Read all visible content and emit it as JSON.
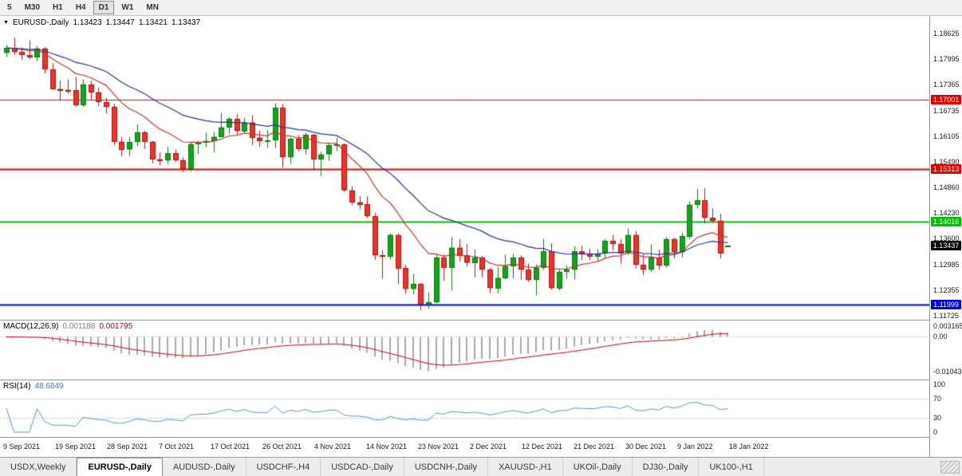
{
  "toolbar": {
    "timeframes": [
      {
        "label": "5",
        "active": false
      },
      {
        "label": "M30",
        "active": false
      },
      {
        "label": "H1",
        "active": false
      },
      {
        "label": "H4",
        "active": false
      },
      {
        "label": "D1",
        "active": true
      },
      {
        "label": "W1",
        "active": false
      },
      {
        "label": "MN",
        "active": false
      }
    ]
  },
  "chart": {
    "title": {
      "symbol": "EURUSD-,Daily",
      "open": "1.13423",
      "high": "1.13447",
      "low": "1.13421",
      "close": "1.13437"
    }
  },
  "chart_data": {
    "type": "candlestick",
    "symbol": "EURUSD-",
    "timeframe": "Daily",
    "y_axis": {
      "min": 1.11725,
      "max": 1.18625,
      "ticks": [
        "1.18625",
        "1.17995",
        "1.17365",
        "1.16735",
        "1.16105",
        "1.15490",
        "1.14860",
        "1.14230",
        "1.13600",
        "1.12985",
        "1.12355",
        "1.11725"
      ]
    },
    "x_axis": {
      "labels": [
        "9 Sep 2021",
        "19 Sep 2021",
        "28 Sep 2021",
        "7 Oct 2021",
        "17 Oct 2021",
        "26 Oct 2021",
        "4 Nov 2021",
        "14 Nov 2021",
        "23 Nov 2021",
        "2 Dec 2021",
        "12 Dec 2021",
        "21 Dec 2021",
        "30 Dec 2021",
        "9 Jan 2022",
        "18 Jan 2022"
      ]
    },
    "hlines": [
      {
        "price": 1.17001,
        "label": "1.17001",
        "color": "#e80000",
        "width": 1
      },
      {
        "price": 1.15313,
        "label": "1.15313",
        "color": "#e80000",
        "width": 2
      },
      {
        "price": 1.14016,
        "label": "1.14016",
        "color": "#00c000",
        "width": 2
      },
      {
        "price": 1.11999,
        "label": "1.11999",
        "color": "#0000e8",
        "width": 2
      }
    ],
    "current_price": {
      "value": 1.13437,
      "label": "1.13437",
      "bg": "#000000"
    },
    "moving_averages": [
      {
        "type": "EMA",
        "period": 12,
        "color": "#c03a2b"
      },
      {
        "type": "EMA",
        "period": 26,
        "color": "#26339e"
      }
    ],
    "colors": {
      "up": "#12a51b",
      "up_border": "#0b7a12",
      "down": "#ee312b",
      "down_border": "#b31510",
      "background": "#ffffff"
    },
    "candles": [
      [
        1.1815,
        1.1835,
        1.1805,
        1.1827
      ],
      [
        1.1827,
        1.1852,
        1.181,
        1.1817
      ],
      [
        1.1817,
        1.1828,
        1.1798,
        1.181
      ],
      [
        1.181,
        1.1846,
        1.18,
        1.1805
      ],
      [
        1.1805,
        1.1832,
        1.1795,
        1.1826
      ],
      [
        1.1826,
        1.183,
        1.1765,
        1.1775
      ],
      [
        1.1775,
        1.179,
        1.1725,
        1.1727
      ],
      [
        1.1727,
        1.1748,
        1.17,
        1.1725
      ],
      [
        1.1725,
        1.175,
        1.1715,
        1.1724
      ],
      [
        1.1724,
        1.1756,
        1.1684,
        1.1687
      ],
      [
        1.1687,
        1.175,
        1.1683,
        1.1738
      ],
      [
        1.1738,
        1.1747,
        1.17,
        1.1719
      ],
      [
        1.1719,
        1.173,
        1.1685,
        1.1695
      ],
      [
        1.1695,
        1.1705,
        1.1667,
        1.1683
      ],
      [
        1.1683,
        1.169,
        1.1589,
        1.1598
      ],
      [
        1.1598,
        1.161,
        1.1562,
        1.1579
      ],
      [
        1.1579,
        1.1608,
        1.1563,
        1.1597
      ],
      [
        1.1597,
        1.164,
        1.1587,
        1.1621
      ],
      [
        1.1621,
        1.1625,
        1.158,
        1.1598
      ],
      [
        1.1598,
        1.16,
        1.1545,
        1.1555
      ],
      [
        1.1555,
        1.1572,
        1.154,
        1.1552
      ],
      [
        1.1552,
        1.1586,
        1.1543,
        1.157
      ],
      [
        1.157,
        1.1578,
        1.1548,
        1.1553
      ],
      [
        1.1553,
        1.156,
        1.1524,
        1.1531
      ],
      [
        1.1531,
        1.1597,
        1.1525,
        1.1592
      ],
      [
        1.1592,
        1.16,
        1.1568,
        1.1597
      ],
      [
        1.1597,
        1.162,
        1.1585,
        1.16
      ],
      [
        1.16,
        1.1622,
        1.1571,
        1.161
      ],
      [
        1.161,
        1.1669,
        1.1609,
        1.1633
      ],
      [
        1.1633,
        1.1658,
        1.1617,
        1.1654
      ],
      [
        1.1654,
        1.1666,
        1.1616,
        1.1624
      ],
      [
        1.1624,
        1.1656,
        1.162,
        1.1645
      ],
      [
        1.1645,
        1.1663,
        1.159,
        1.1608
      ],
      [
        1.1608,
        1.1625,
        1.1585,
        1.16
      ],
      [
        1.16,
        1.1626,
        1.1583,
        1.1601
      ],
      [
        1.1601,
        1.1692,
        1.1582,
        1.1681
      ],
      [
        1.1681,
        1.169,
        1.1535,
        1.156
      ],
      [
        1.156,
        1.1609,
        1.1545,
        1.1605
      ],
      [
        1.1605,
        1.1614,
        1.1575,
        1.158
      ],
      [
        1.158,
        1.162,
        1.1566,
        1.1615
      ],
      [
        1.1615,
        1.1617,
        1.1528,
        1.1555
      ],
      [
        1.1555,
        1.1573,
        1.1514,
        1.1567
      ],
      [
        1.1567,
        1.1596,
        1.1552,
        1.1589
      ],
      [
        1.1589,
        1.1608,
        1.1575,
        1.1591
      ],
      [
        1.1591,
        1.1594,
        1.1475,
        1.1479
      ],
      [
        1.1479,
        1.1489,
        1.1443,
        1.145
      ],
      [
        1.145,
        1.1465,
        1.1433,
        1.1445
      ],
      [
        1.1445,
        1.1464,
        1.1412,
        1.1416
      ],
      [
        1.1416,
        1.1424,
        1.1309,
        1.132
      ],
      [
        1.132,
        1.1332,
        1.1263,
        1.1317
      ],
      [
        1.1317,
        1.1374,
        1.131,
        1.137
      ],
      [
        1.137,
        1.1374,
        1.125,
        1.1289
      ],
      [
        1.1289,
        1.1297,
        1.1226,
        1.1238
      ],
      [
        1.1238,
        1.1275,
        1.1225,
        1.125
      ],
      [
        1.125,
        1.1252,
        1.1186,
        1.12
      ],
      [
        1.12,
        1.1229,
        1.119,
        1.1205
      ],
      [
        1.1205,
        1.1323,
        1.1203,
        1.1315
      ],
      [
        1.1315,
        1.1322,
        1.1258,
        1.129
      ],
      [
        1.129,
        1.1365,
        1.1235,
        1.1339
      ],
      [
        1.1339,
        1.136,
        1.1305,
        1.132
      ],
      [
        1.132,
        1.1348,
        1.1293,
        1.1302
      ],
      [
        1.1302,
        1.1334,
        1.1266,
        1.1315
      ],
      [
        1.1315,
        1.1319,
        1.1267,
        1.1285
      ],
      [
        1.1285,
        1.129,
        1.1228,
        1.124
      ],
      [
        1.124,
        1.1292,
        1.1227,
        1.1265
      ],
      [
        1.1265,
        1.1322,
        1.1262,
        1.1294
      ],
      [
        1.1294,
        1.1324,
        1.1264,
        1.1315
      ],
      [
        1.1315,
        1.132,
        1.126,
        1.1285
      ],
      [
        1.1285,
        1.13,
        1.1255,
        1.126
      ],
      [
        1.126,
        1.1298,
        1.1222,
        1.129
      ],
      [
        1.129,
        1.136,
        1.1285,
        1.133
      ],
      [
        1.133,
        1.135,
        1.1236,
        1.124
      ],
      [
        1.124,
        1.1288,
        1.1234,
        1.128
      ],
      [
        1.128,
        1.1295,
        1.1263,
        1.1285
      ],
      [
        1.1285,
        1.1342,
        1.1261,
        1.133
      ],
      [
        1.133,
        1.1344,
        1.1308,
        1.1325
      ],
      [
        1.1325,
        1.1337,
        1.1308,
        1.1318
      ],
      [
        1.1318,
        1.1336,
        1.1305,
        1.1325
      ],
      [
        1.1325,
        1.136,
        1.1313,
        1.1355
      ],
      [
        1.1355,
        1.137,
        1.1333,
        1.1348
      ],
      [
        1.1348,
        1.136,
        1.13,
        1.1325
      ],
      [
        1.1325,
        1.1386,
        1.1321,
        1.137
      ],
      [
        1.137,
        1.1379,
        1.1288,
        1.1297
      ],
      [
        1.1297,
        1.1323,
        1.1272,
        1.1285
      ],
      [
        1.1285,
        1.1347,
        1.128,
        1.1315
      ],
      [
        1.1315,
        1.1334,
        1.1285,
        1.1295
      ],
      [
        1.1295,
        1.1365,
        1.129,
        1.136
      ],
      [
        1.136,
        1.1363,
        1.1313,
        1.1328
      ],
      [
        1.1328,
        1.1375,
        1.1315,
        1.1367
      ],
      [
        1.1367,
        1.1452,
        1.136,
        1.1444
      ],
      [
        1.1444,
        1.1483,
        1.1435,
        1.1455
      ],
      [
        1.1455,
        1.1484,
        1.1398,
        1.1412
      ],
      [
        1.1412,
        1.1435,
        1.1399,
        1.1405
      ],
      [
        1.1405,
        1.1422,
        1.1313,
        1.1325
      ],
      [
        1.13423,
        1.13447,
        1.13421,
        1.13437
      ]
    ],
    "macd": {
      "label": "MACD(12,26,9)",
      "value_main": "0.001188",
      "value_signal": "0.001795",
      "fast": 12,
      "slow": 26,
      "signal": 9,
      "range": [
        -0.0115,
        0.0035
      ],
      "histogram_color": "#aaaaaa",
      "signal_color": "#cc0000",
      "axis": [
        {
          "value": 0.003165,
          "label": "0.003165"
        },
        {
          "value": 0,
          "label": "0.00"
        },
        {
          "value": -0.010435,
          "label": "-0.010435"
        }
      ]
    },
    "rsi": {
      "label": "RSI(14)",
      "value": "48.6849",
      "period": 14,
      "color": "#4f96d8",
      "levels": [
        70,
        30
      ],
      "axis": [
        {
          "value": 100,
          "label": "100"
        },
        {
          "value": 70,
          "label": "70"
        },
        {
          "value": 30,
          "label": "30"
        },
        {
          "value": 0,
          "label": "0"
        }
      ]
    }
  },
  "tabs": [
    {
      "label": "USDX,Weekly",
      "active": false
    },
    {
      "label": "EURUSD-,Daily",
      "active": true
    },
    {
      "label": "AUDUSD-,Daily",
      "active": false
    },
    {
      "label": "USDCHF-,H4",
      "active": false
    },
    {
      "label": "USDCAD-,Daily",
      "active": false
    },
    {
      "label": "USDCNH-,Daily",
      "active": false
    },
    {
      "label": "XAUUSD-,H1",
      "active": false
    },
    {
      "label": "UKOil-,Daily",
      "active": false
    },
    {
      "label": "DJ30-,Daily",
      "active": false
    },
    {
      "label": "UK100-,H1",
      "active": false
    }
  ]
}
